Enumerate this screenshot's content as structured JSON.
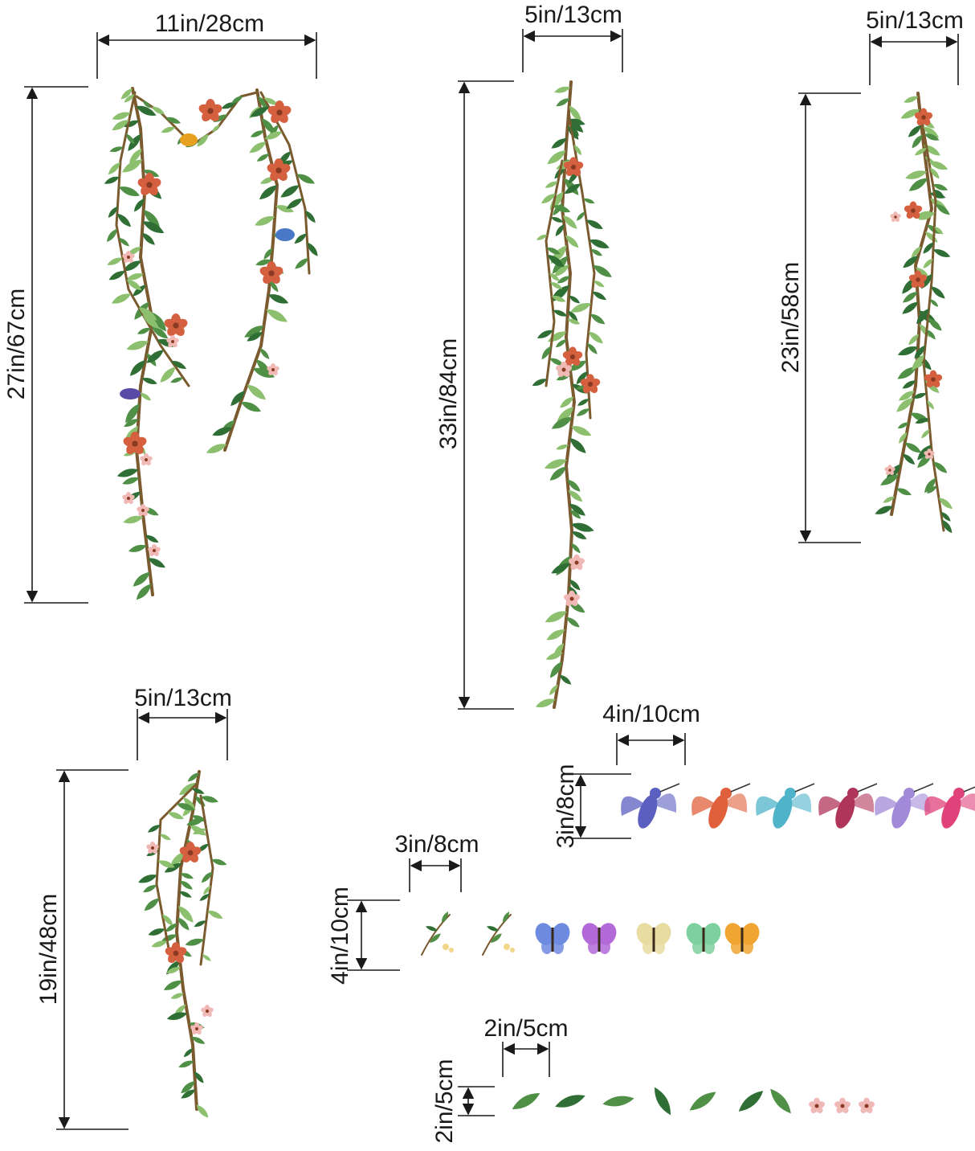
{
  "colors": {
    "line": "#1a1a1a",
    "stem": "#7a5a2e",
    "leaf": "#4f8f46",
    "leaf_dark": "#2f6e34",
    "leaf_light": "#8cbf6e",
    "flower": "#d4603f",
    "blossom": "#f0b9b6"
  },
  "dimensions": {
    "vine1_width": "11in/28cm",
    "vine1_height": "27in/67cm",
    "vine2_width": "5in/13cm",
    "vine2_height": "33in/84cm",
    "vine3_width": "5in/13cm",
    "vine3_height": "23in/58cm",
    "vine4_width": "5in/13cm",
    "vine4_height": "19in/48cm",
    "birds_width": "4in/10cm",
    "birds_height": "3in/8cm",
    "butterflies_width": "3in/8cm",
    "butterflies_height": "4in/10cm",
    "leaves_width": "2in/5cm",
    "leaves_height": "2in/5cm"
  },
  "stickers": {
    "hummingbirds": [
      "hummingbird-icon",
      "hummingbird-icon",
      "hummingbird-icon",
      "hummingbird-icon",
      "hummingbird-icon",
      "hummingbird-icon"
    ],
    "hummingbird_colors": [
      "#5b5fc0",
      "#e0603c",
      "#4fb3c9",
      "#b0355a",
      "#a28ad8",
      "#e0427a"
    ],
    "butterflies": [
      "leaf-sprig-icon",
      "leaf-sprig-icon",
      "butterfly-icon",
      "butterfly-icon",
      "butterfly-icon",
      "butterfly-icon",
      "butterfly-icon"
    ],
    "butterfly_colors": [
      "#6f8be0",
      "#b36ad8",
      "#e8dca0",
      "#7ed0a0",
      "#f0a431"
    ],
    "small_leaves_count": 7,
    "small_flowers_count": 3
  }
}
